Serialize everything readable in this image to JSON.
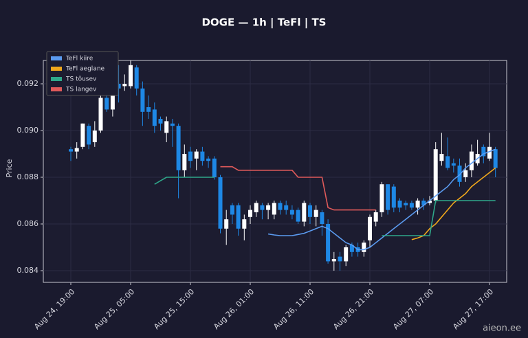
{
  "chart_data": {
    "type": "candlestick",
    "title": "DOGE — 1h  |  TeFl  |  TS",
    "y_label": "Price",
    "watermark": "aieon.ee",
    "categories": [
      "Aug 24, 19:00",
      null,
      null,
      null,
      null,
      null,
      null,
      null,
      null,
      null,
      "Aug 25, 05:00",
      null,
      null,
      null,
      null,
      null,
      null,
      null,
      null,
      null,
      "Aug 25, 15:00",
      null,
      null,
      null,
      null,
      null,
      null,
      null,
      null,
      null,
      "Aug 26, 01:00",
      null,
      null,
      null,
      null,
      null,
      null,
      null,
      null,
      null,
      "Aug 26, 11:00",
      null,
      null,
      null,
      null,
      null,
      null,
      null,
      null,
      null,
      "Aug 26, 21:00",
      null,
      null,
      null,
      null,
      null,
      null,
      null,
      null,
      null,
      "Aug 27, 07:00",
      null,
      null,
      null,
      null,
      null,
      null,
      null,
      null,
      null,
      "Aug 27, 17:00",
      null
    ],
    "open": [
      0.0892,
      0.0891,
      0.0893,
      0.0902,
      0.0895,
      0.09,
      0.0914,
      0.0909,
      0.092,
      0.0919,
      0.0919,
      0.0927,
      0.0918,
      0.091,
      0.0909,
      0.0905,
      0.0899,
      0.0903,
      0.0902,
      0.0883,
      0.0891,
      0.0888,
      0.0891,
      0.0888,
      0.0888,
      0.088,
      0.0858,
      0.0868,
      0.0868,
      0.0858,
      0.0863,
      0.0865,
      0.0868,
      0.0866,
      0.0864,
      0.0869,
      0.0868,
      0.0866,
      0.0866,
      0.0861,
      0.0868,
      0.0863,
      0.0865,
      0.086,
      0.0844,
      0.0846,
      0.0844,
      0.0851,
      0.085,
      0.0848,
      0.0853,
      0.0861,
      0.0865,
      0.0877,
      0.0876,
      0.087,
      0.0869,
      0.0869,
      0.0867,
      0.087,
      0.0869,
      0.087,
      0.0887,
      0.0889,
      0.0886,
      0.0885,
      0.088,
      0.0883,
      0.0886,
      0.0893,
      0.0888,
      0.0892
    ],
    "high": [
      0.0893,
      0.0895,
      0.0903,
      0.0903,
      0.0904,
      0.0916,
      0.0916,
      0.0925,
      0.0928,
      0.0924,
      0.093,
      0.0928,
      0.0921,
      0.0915,
      0.0912,
      0.0906,
      0.0906,
      0.0905,
      0.0903,
      0.0894,
      0.0893,
      0.0892,
      0.0893,
      0.0889,
      0.0889,
      0.0881,
      0.0866,
      0.0869,
      0.0869,
      0.0864,
      0.0868,
      0.087,
      0.0869,
      0.0869,
      0.087,
      0.087,
      0.087,
      0.0868,
      0.0867,
      0.087,
      0.0869,
      0.0868,
      0.0866,
      0.0862,
      0.0848,
      0.0848,
      0.0851,
      0.0852,
      0.0852,
      0.0853,
      0.0864,
      0.0866,
      0.0878,
      0.0877,
      0.0877,
      0.0871,
      0.087,
      0.087,
      0.0871,
      0.0871,
      0.0872,
      0.0895,
      0.0899,
      0.0897,
      0.0888,
      0.0888,
      0.0886,
      0.0894,
      0.0896,
      0.0894,
      0.0899,
      0.0893
    ],
    "low": [
      0.0887,
      0.0888,
      0.0892,
      0.0892,
      0.0893,
      0.0899,
      0.0908,
      0.0906,
      0.0912,
      0.0917,
      0.0918,
      0.0915,
      0.0902,
      0.0905,
      0.0899,
      0.09,
      0.0895,
      0.0893,
      0.0871,
      0.088,
      0.0884,
      0.0883,
      0.0885,
      0.0884,
      0.0879,
      0.0856,
      0.0851,
      0.086,
      0.0855,
      0.0853,
      0.086,
      0.0863,
      0.0862,
      0.0862,
      0.0862,
      0.0864,
      0.0864,
      0.0862,
      0.086,
      0.0859,
      0.086,
      0.0859,
      0.0855,
      0.0843,
      0.084,
      0.084,
      0.0842,
      0.0846,
      0.0846,
      0.0846,
      0.085,
      0.0859,
      0.0863,
      0.0864,
      0.0865,
      0.0865,
      0.0866,
      0.0866,
      0.0864,
      0.0866,
      0.0868,
      0.0869,
      0.0885,
      0.0883,
      0.0882,
      0.0876,
      0.0878,
      0.088,
      0.0885,
      0.0886,
      0.0887,
      0.088
    ],
    "close": [
      0.0891,
      0.08925,
      0.0903,
      0.0894,
      0.09,
      0.0914,
      0.0909,
      0.092,
      0.0918,
      0.092,
      0.0928,
      0.0918,
      0.0908,
      0.0908,
      0.0902,
      0.0903,
      0.0904,
      0.0902,
      0.0883,
      0.089,
      0.0887,
      0.0891,
      0.0887,
      0.0887,
      0.088,
      0.0858,
      0.0862,
      0.0864,
      0.0858,
      0.0862,
      0.0866,
      0.0869,
      0.0866,
      0.0868,
      0.0869,
      0.0866,
      0.0866,
      0.0864,
      0.0861,
      0.0869,
      0.0863,
      0.0866,
      0.086,
      0.0844,
      0.0845,
      0.0844,
      0.085,
      0.0848,
      0.0848,
      0.0852,
      0.0863,
      0.0865,
      0.0877,
      0.0866,
      0.0867,
      0.0867,
      0.0868,
      0.0867,
      0.087,
      0.0868,
      0.087,
      0.0892,
      0.089,
      0.0884,
      0.0885,
      0.0878,
      0.0883,
      0.0891,
      0.089,
      0.0889,
      0.0893,
      0.0884
    ],
    "up_color": "#ffffff",
    "down_color": "#1e88e5",
    "series": [
      {
        "name": "TeFl kiire",
        "color": "#5b9bf0",
        "values": [
          null,
          null,
          null,
          null,
          null,
          null,
          null,
          null,
          null,
          null,
          null,
          null,
          null,
          null,
          null,
          null,
          null,
          null,
          null,
          null,
          null,
          null,
          null,
          null,
          null,
          null,
          null,
          null,
          null,
          null,
          null,
          null,
          null,
          0.08557,
          0.08553,
          0.0855,
          0.0855,
          0.0855,
          0.08555,
          0.0856,
          0.0857,
          0.0858,
          0.0859,
          0.0858,
          0.0856,
          0.0854,
          0.0852,
          0.0851,
          0.0849,
          0.0849,
          0.085,
          0.0852,
          0.0854,
          0.0856,
          0.0858,
          0.086,
          0.0862,
          0.0864,
          0.0866,
          0.0868,
          0.087,
          0.0872,
          0.0874,
          0.0876,
          0.0879,
          0.0881,
          0.0884,
          0.0886,
          0.0888,
          0.089,
          0.0891,
          0.0892
        ]
      },
      {
        "name": "TeFl aeglane",
        "color": "#f0a81c",
        "values": [
          null,
          null,
          null,
          null,
          null,
          null,
          null,
          null,
          null,
          null,
          null,
          null,
          null,
          null,
          null,
          null,
          null,
          null,
          null,
          null,
          null,
          null,
          null,
          null,
          null,
          null,
          null,
          null,
          null,
          null,
          null,
          null,
          null,
          null,
          null,
          null,
          null,
          null,
          null,
          null,
          null,
          null,
          null,
          null,
          null,
          null,
          null,
          null,
          null,
          null,
          null,
          null,
          null,
          null,
          null,
          null,
          null,
          0.08533,
          0.0854,
          0.0855,
          0.0858,
          0.086,
          0.0863,
          0.0866,
          0.0869,
          0.0871,
          0.0873,
          0.0876,
          0.0878,
          0.088,
          0.0882,
          0.0884
        ]
      },
      {
        "name": "TS tõusev",
        "color": "#2fa88a",
        "values": [
          null,
          null,
          null,
          null,
          null,
          null,
          null,
          null,
          null,
          null,
          null,
          null,
          null,
          null,
          0.0877,
          0.08785,
          0.088,
          0.088,
          0.088,
          0.088,
          0.088,
          0.088,
          0.088,
          0.088,
          0.088,
          null,
          null,
          null,
          null,
          null,
          null,
          null,
          null,
          null,
          null,
          null,
          null,
          null,
          null,
          null,
          null,
          null,
          null,
          null,
          null,
          null,
          null,
          null,
          null,
          null,
          null,
          null,
          0.0855,
          0.0855,
          0.0855,
          0.0855,
          0.0855,
          0.0855,
          0.0855,
          0.0855,
          0.0855,
          0.087,
          0.087,
          0.087,
          0.087,
          0.087,
          0.087,
          0.087,
          0.087,
          0.087,
          0.087,
          0.087
        ]
      },
      {
        "name": "TS langev",
        "color": "#e05a5a",
        "values": [
          null,
          null,
          null,
          null,
          null,
          null,
          null,
          null,
          null,
          null,
          null,
          null,
          null,
          null,
          null,
          null,
          null,
          null,
          null,
          null,
          null,
          null,
          null,
          null,
          null,
          0.08845,
          0.08845,
          0.08845,
          0.0883,
          0.0883,
          0.0883,
          0.0883,
          0.0883,
          0.0883,
          0.0883,
          0.0883,
          0.0883,
          0.0883,
          0.088,
          0.088,
          0.088,
          0.088,
          0.088,
          0.0867,
          0.0866,
          0.0866,
          0.0866,
          0.0866,
          0.0866,
          0.0866,
          0.0866,
          0.0866,
          null,
          null,
          null,
          null,
          null,
          null,
          null,
          null,
          null,
          null,
          null,
          null,
          null,
          null,
          null,
          null,
          null,
          null,
          null,
          null
        ]
      }
    ],
    "ylim": [
      0.0835,
      0.093
    ],
    "yticks": [
      0.084,
      0.086,
      0.088,
      {
        "value": 0.09,
        "label": "0.090"
      },
      0.092
    ],
    "grid": true,
    "legend": "upper left"
  }
}
